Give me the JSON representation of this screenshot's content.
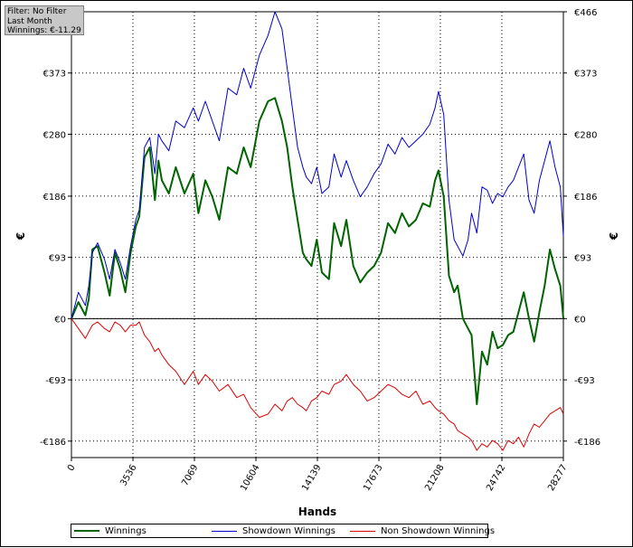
{
  "info": {
    "filter": "Filter: No Filter",
    "period": "Last Month",
    "winnings": "Winnings: €-11.29"
  },
  "chart_data": {
    "type": "line",
    "xlabel": "Hands",
    "ylabel": "€",
    "ylabel_right": "€",
    "xlim": [
      0,
      28277
    ],
    "ylim": [
      -211,
      466
    ],
    "x_ticks": [
      0,
      3536,
      7069,
      10604,
      14139,
      17673,
      21208,
      24742,
      28277
    ],
    "x_tick_labels": [
      "0",
      "3536",
      "7069",
      "10604",
      "14139",
      "17673",
      "21208",
      "24742",
      "28277"
    ],
    "y_ticks": [
      -186,
      -93,
      0,
      93,
      186,
      280,
      373,
      466
    ],
    "y_tick_labels": [
      "-€186",
      "-€93",
      "€0",
      "€93",
      "€186",
      "€280",
      "€373",
      "€466"
    ],
    "grid": true,
    "legend_position": "bottom",
    "series": [
      {
        "name": "Winnings",
        "color": "#006400",
        "x": [
          0,
          400,
          800,
          1000,
          1200,
          1500,
          1900,
          2200,
          2500,
          2800,
          3100,
          3400,
          3700,
          3900,
          4200,
          4500,
          4800,
          5000,
          5200,
          5600,
          6000,
          6500,
          7000,
          7300,
          7700,
          8100,
          8500,
          9000,
          9500,
          9900,
          10300,
          10800,
          11300,
          11700,
          12100,
          12400,
          12700,
          13000,
          13300,
          13500,
          13800,
          14100,
          14400,
          14800,
          15100,
          15500,
          15800,
          16200,
          16600,
          17000,
          17400,
          17800,
          18200,
          18600,
          19000,
          19400,
          19800,
          20200,
          20600,
          20900,
          21100,
          21400,
          21700,
          22000,
          22200,
          22500,
          22800,
          23000,
          23300,
          23600,
          23900,
          24200,
          24500,
          24800,
          25100,
          25400,
          25700,
          26000,
          26300,
          26600,
          26900,
          27200,
          27500,
          27800,
          28100,
          28277
        ],
        "y": [
          0,
          25,
          5,
          30,
          105,
          110,
          70,
          35,
          100,
          75,
          40,
          100,
          140,
          155,
          245,
          260,
          180,
          240,
          210,
          190,
          230,
          190,
          220,
          160,
          210,
          185,
          150,
          230,
          220,
          260,
          230,
          300,
          330,
          335,
          300,
          260,
          200,
          150,
          100,
          90,
          80,
          120,
          70,
          60,
          145,
          110,
          150,
          80,
          55,
          70,
          80,
          100,
          145,
          130,
          160,
          140,
          150,
          175,
          170,
          210,
          225,
          185,
          65,
          40,
          50,
          0,
          -15,
          -25,
          -130,
          -50,
          -70,
          -20,
          -45,
          -40,
          -25,
          -20,
          10,
          40,
          0,
          -35,
          10,
          50,
          105,
          75,
          50,
          0
        ]
      },
      {
        "name": "Showdown Winnings",
        "color": "#0000cc",
        "x": [
          0,
          400,
          800,
          1000,
          1200,
          1500,
          1900,
          2200,
          2500,
          2800,
          3100,
          3400,
          3700,
          3900,
          4200,
          4500,
          4800,
          5000,
          5200,
          5600,
          6000,
          6500,
          7000,
          7300,
          7700,
          8100,
          8500,
          9000,
          9500,
          9900,
          10300,
          10800,
          11300,
          11700,
          12100,
          12400,
          12700,
          13000,
          13300,
          13500,
          13800,
          14100,
          14400,
          14800,
          15100,
          15500,
          15800,
          16200,
          16600,
          17000,
          17400,
          17800,
          18200,
          18600,
          19000,
          19400,
          19800,
          20200,
          20600,
          20900,
          21100,
          21400,
          21700,
          22000,
          22200,
          22500,
          22800,
          23000,
          23300,
          23600,
          23900,
          24200,
          24500,
          24800,
          25100,
          25400,
          25700,
          26000,
          26300,
          26600,
          26900,
          27200,
          27500,
          27800,
          28100,
          28277
        ],
        "y": [
          0,
          40,
          20,
          50,
          100,
          115,
          90,
          60,
          105,
          85,
          60,
          110,
          150,
          165,
          260,
          275,
          220,
          280,
          270,
          255,
          300,
          290,
          320,
          300,
          330,
          300,
          270,
          350,
          340,
          380,
          350,
          400,
          430,
          466,
          440,
          380,
          320,
          260,
          230,
          215,
          205,
          230,
          190,
          200,
          250,
          215,
          240,
          210,
          185,
          200,
          220,
          235,
          265,
          250,
          275,
          260,
          270,
          280,
          295,
          320,
          345,
          310,
          180,
          120,
          110,
          95,
          120,
          160,
          130,
          200,
          195,
          175,
          190,
          185,
          200,
          210,
          230,
          250,
          180,
          160,
          210,
          240,
          270,
          230,
          200,
          125
        ]
      },
      {
        "name": "Non Showdown Winnings",
        "color": "#dd0000",
        "x": [
          0,
          400,
          800,
          1000,
          1200,
          1500,
          1900,
          2200,
          2500,
          2800,
          3100,
          3400,
          3700,
          3900,
          4200,
          4500,
          4800,
          5000,
          5200,
          5600,
          6000,
          6500,
          7000,
          7300,
          7700,
          8100,
          8500,
          9000,
          9500,
          9900,
          10300,
          10800,
          11300,
          11700,
          12100,
          12400,
          12700,
          13000,
          13300,
          13500,
          13800,
          14100,
          14400,
          14800,
          15100,
          15500,
          15800,
          16200,
          16600,
          17000,
          17400,
          17800,
          18200,
          18600,
          19000,
          19400,
          19800,
          20200,
          20600,
          20900,
          21100,
          21400,
          21700,
          22000,
          22200,
          22500,
          22800,
          23000,
          23300,
          23600,
          23900,
          24200,
          24500,
          24800,
          25100,
          25400,
          25700,
          26000,
          26300,
          26600,
          26900,
          27200,
          27500,
          27800,
          28100,
          28277
        ],
        "y": [
          0,
          -15,
          -30,
          -20,
          -10,
          -5,
          -15,
          -20,
          -5,
          -10,
          -20,
          -10,
          -10,
          -5,
          -25,
          -35,
          -50,
          -45,
          -55,
          -70,
          -80,
          -100,
          -80,
          -100,
          -85,
          -95,
          -110,
          -100,
          -120,
          -115,
          -135,
          -150,
          -145,
          -130,
          -140,
          -125,
          -120,
          -130,
          -135,
          -140,
          -125,
          -120,
          -110,
          -115,
          -100,
          -95,
          -85,
          -100,
          -110,
          -125,
          -120,
          -110,
          -100,
          -105,
          -115,
          -120,
          -110,
          -130,
          -125,
          -135,
          -140,
          -145,
          -155,
          -160,
          -170,
          -175,
          -180,
          -185,
          -200,
          -190,
          -195,
          -185,
          -190,
          -200,
          -185,
          -190,
          -180,
          -195,
          -175,
          -160,
          -165,
          -155,
          -145,
          -140,
          -135,
          -145
        ]
      }
    ]
  }
}
